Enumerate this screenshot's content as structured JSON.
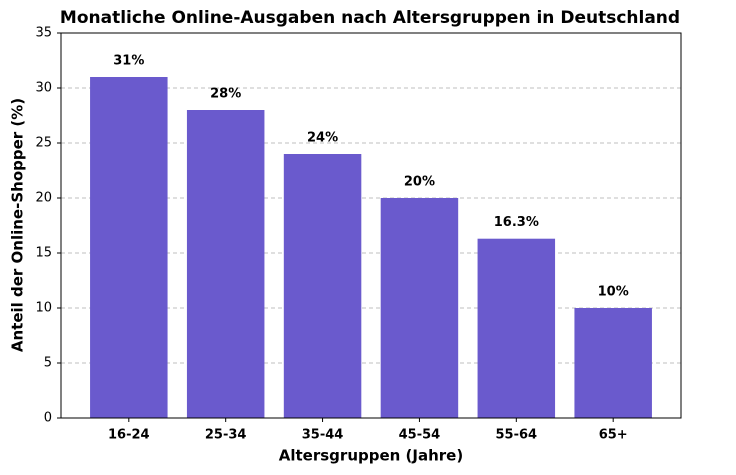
{
  "chart_data": {
    "type": "bar",
    "title": "Monatliche Online-Ausgaben nach Altersgruppen in Deutschland",
    "x_label": "Altersgruppen (Jahre)",
    "y_label": "Anteil der Online-Shopper (%)",
    "categories": [
      "16-24",
      "25-34",
      "35-44",
      "45-54",
      "55-64",
      "65+"
    ],
    "values": [
      31,
      28,
      24,
      20,
      16.3,
      10
    ],
    "value_labels": [
      "31%",
      "28%",
      "24%",
      "20%",
      "16.3%",
      "10%"
    ],
    "color": "#6a5acd",
    "ylim": [
      0,
      35
    ],
    "yticks": [
      0,
      5,
      10,
      15,
      20,
      25,
      30,
      35
    ],
    "grid": true
  }
}
